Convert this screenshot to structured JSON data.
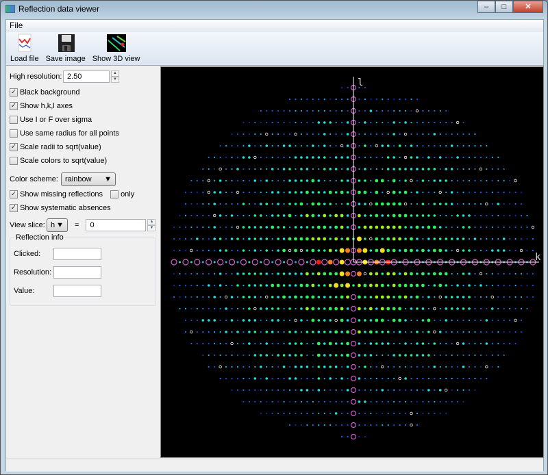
{
  "window": {
    "title": "Reflection data viewer",
    "minimize": "–",
    "maximize": "□",
    "close": "✕"
  },
  "menu": {
    "file": "File"
  },
  "toolbar": {
    "load": "Load file",
    "save": "Save image",
    "show3d": "Show 3D view"
  },
  "controls": {
    "high_resolution_label": "High resolution:",
    "high_resolution_value": "2.50",
    "checkboxes": [
      {
        "label": "Black background",
        "checked": true
      },
      {
        "label": "Show h,k,l axes",
        "checked": true
      },
      {
        "label": "Use I or F over sigma",
        "checked": false
      },
      {
        "label": "Use same radius for all points",
        "checked": false
      },
      {
        "label": "Scale radii to sqrt(value)",
        "checked": true
      },
      {
        "label": "Scale colors to sqrt(value)",
        "checked": false
      }
    ],
    "color_scheme_label": "Color scheme:",
    "color_scheme_value": "rainbow",
    "show_missing": {
      "label": "Show missing reflections",
      "checked": true
    },
    "only": {
      "label": "only",
      "checked": false
    },
    "show_absences": {
      "label": "Show systematic absences",
      "checked": true
    },
    "view_slice_label": "View slice:",
    "slice_axis": "h",
    "equals": "=",
    "slice_value": "0"
  },
  "reflection_info": {
    "title": "Reflection info",
    "clicked_label": "Clicked:",
    "resolution_label": "Resolution:",
    "value_label": "Value:",
    "clicked": "",
    "resolution": "",
    "value": ""
  },
  "viewer": {
    "axis_vertical": "l",
    "axis_horizontal": "k",
    "colors": {
      "background": "#000000",
      "axis": "#ffffff",
      "missing": "#d060d0",
      "absence": "#ffffff"
    }
  }
}
